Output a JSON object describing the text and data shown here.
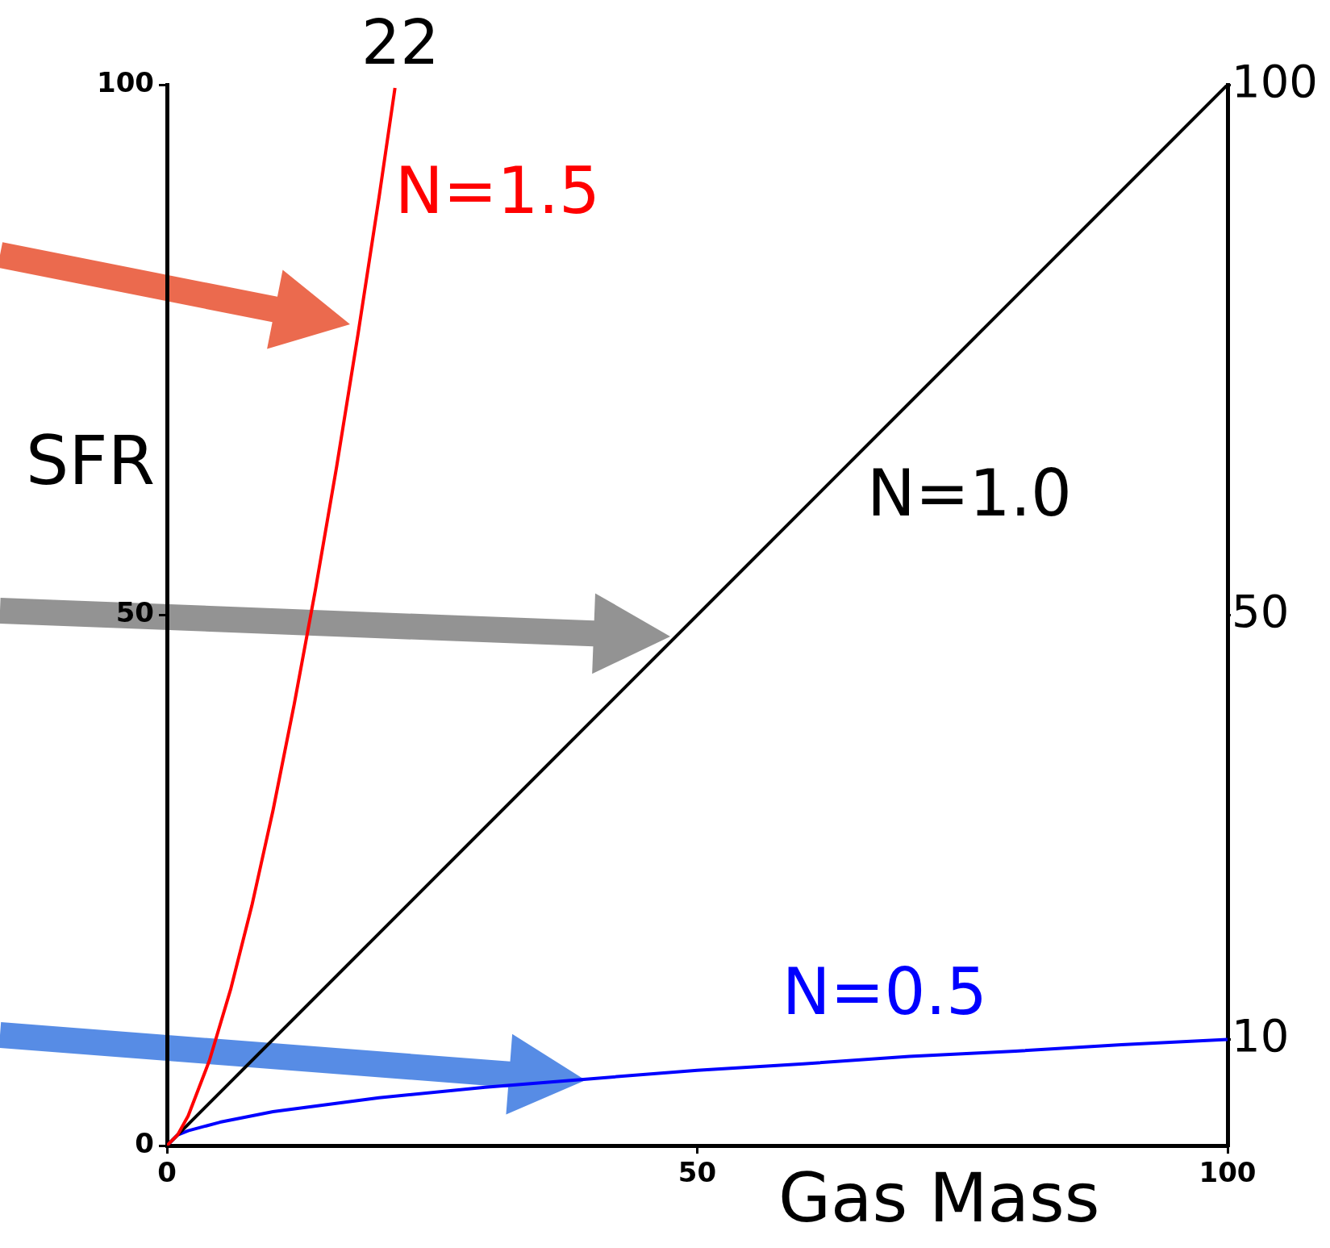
{
  "chart_data": {
    "type": "line",
    "xlabel": "Gas Mass",
    "ylabel": "SFR",
    "xlim": [
      0,
      100
    ],
    "xticks": [
      0,
      50,
      100
    ],
    "ylim": [
      0,
      100
    ],
    "yticks": [
      0,
      50,
      100
    ],
    "y2lim": [
      0,
      100
    ],
    "y2ticks": [
      10,
      50,
      100
    ],
    "annotations": [
      "22"
    ],
    "marker": "none",
    "line_style": "solid",
    "series": [
      {
        "name": "N=1.5",
        "color": "#ff0000",
        "x": [
          0,
          1,
          2,
          4,
          6,
          8,
          10,
          12,
          14,
          16,
          18,
          20,
          21.5
        ],
        "values": [
          0,
          1,
          2.8,
          8,
          14.7,
          22.6,
          31.6,
          41.6,
          52.4,
          64,
          76.4,
          89.4,
          99.7
        ]
      },
      {
        "name": "N=1.0",
        "color": "#000000",
        "x": [
          0,
          100
        ],
        "values": [
          0,
          100
        ]
      },
      {
        "name": "N=0.5",
        "color": "#0000ff",
        "x": [
          0,
          1,
          2,
          5,
          10,
          20,
          30,
          40,
          50,
          60,
          70,
          80,
          90,
          100
        ],
        "values": [
          0,
          1,
          1.4,
          2.2,
          3.2,
          4.5,
          5.5,
          6.3,
          7.1,
          7.7,
          8.4,
          8.9,
          9.5,
          10
        ]
      }
    ]
  }
}
